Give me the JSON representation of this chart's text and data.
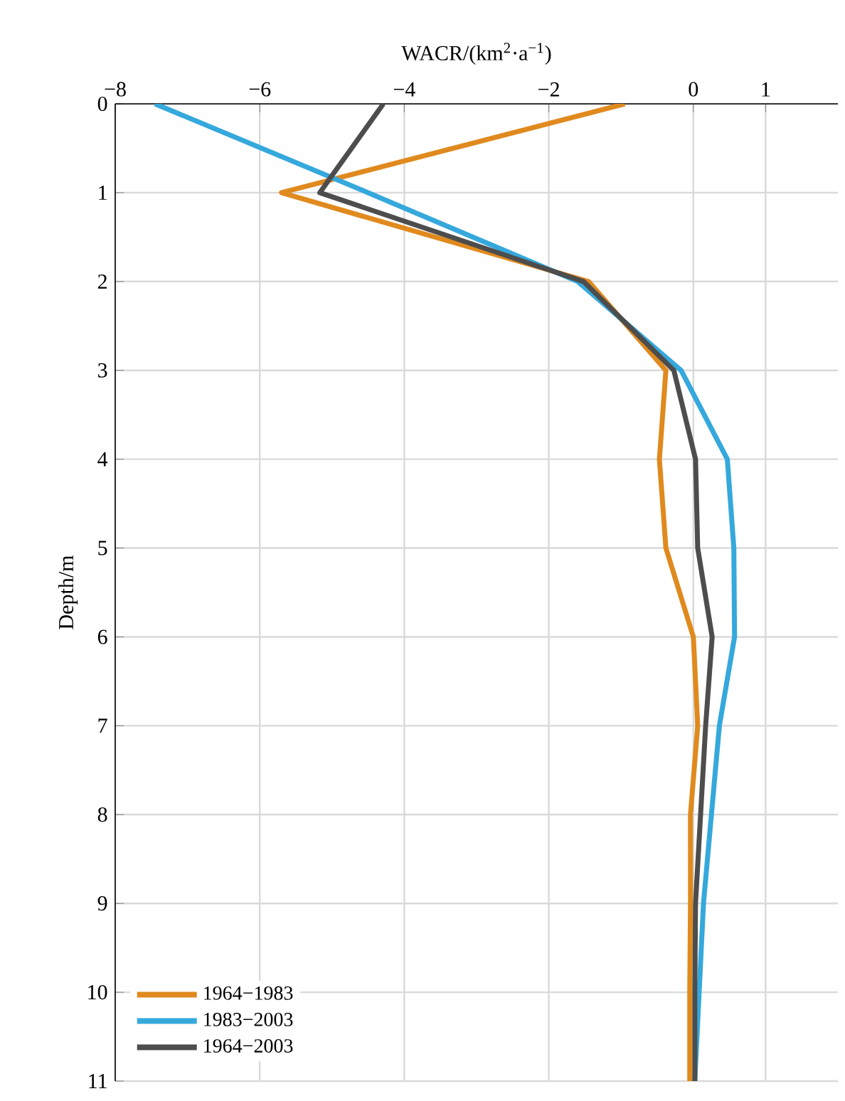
{
  "chart_data": {
    "type": "line",
    "xlabel": "WACR/(km$^{2}$·a$^{−1}$)",
    "ylabel": "Depth/m",
    "xlim": [
      -8,
      2
    ],
    "ylim": [
      11,
      0
    ],
    "xticks": [
      {
        "value": -8,
        "label": "−8"
      },
      {
        "value": -6,
        "label": "−6"
      },
      {
        "value": -4,
        "label": "−4"
      },
      {
        "value": -2,
        "label": "−2"
      },
      0,
      1
    ],
    "yticks": [
      0,
      1,
      2,
      3,
      4,
      5,
      6,
      7,
      8,
      9,
      10,
      11
    ],
    "grid": true,
    "legend": "bottom left",
    "marker": "none",
    "line_style": "solid",
    "series": [
      {
        "name": "1964−1983",
        "color": "#e08a1e",
        "x": [
          -0.95,
          -5.7,
          -1.45,
          -0.38,
          -0.47,
          -0.38,
          0,
          0.06,
          -0.04,
          -0.04,
          -0.05,
          -0.05
        ],
        "values": [
          0,
          1,
          2,
          3,
          4,
          5,
          6,
          7,
          8,
          9,
          10,
          11
        ]
      },
      {
        "name": "1983−2003",
        "color": "#35a8dc",
        "x": [
          -7.45,
          -4.5,
          -1.6,
          -0.17,
          0.47,
          0.56,
          0.57,
          0.36,
          0.25,
          0.14,
          0.08,
          0.02
        ],
        "values": [
          0,
          1,
          2,
          3,
          4,
          5,
          6,
          7,
          8,
          9,
          10,
          11
        ]
      },
      {
        "name": "1964−2003",
        "color": "#4d4d4d",
        "x": [
          -4.29,
          -5.17,
          -1.52,
          -0.27,
          0.03,
          0.06,
          0.26,
          0.17,
          0.1,
          0.03,
          0.02,
          0.02
        ],
        "values": [
          0,
          1,
          2,
          3,
          4,
          5,
          6,
          7,
          8,
          9,
          10,
          11
        ]
      }
    ]
  }
}
